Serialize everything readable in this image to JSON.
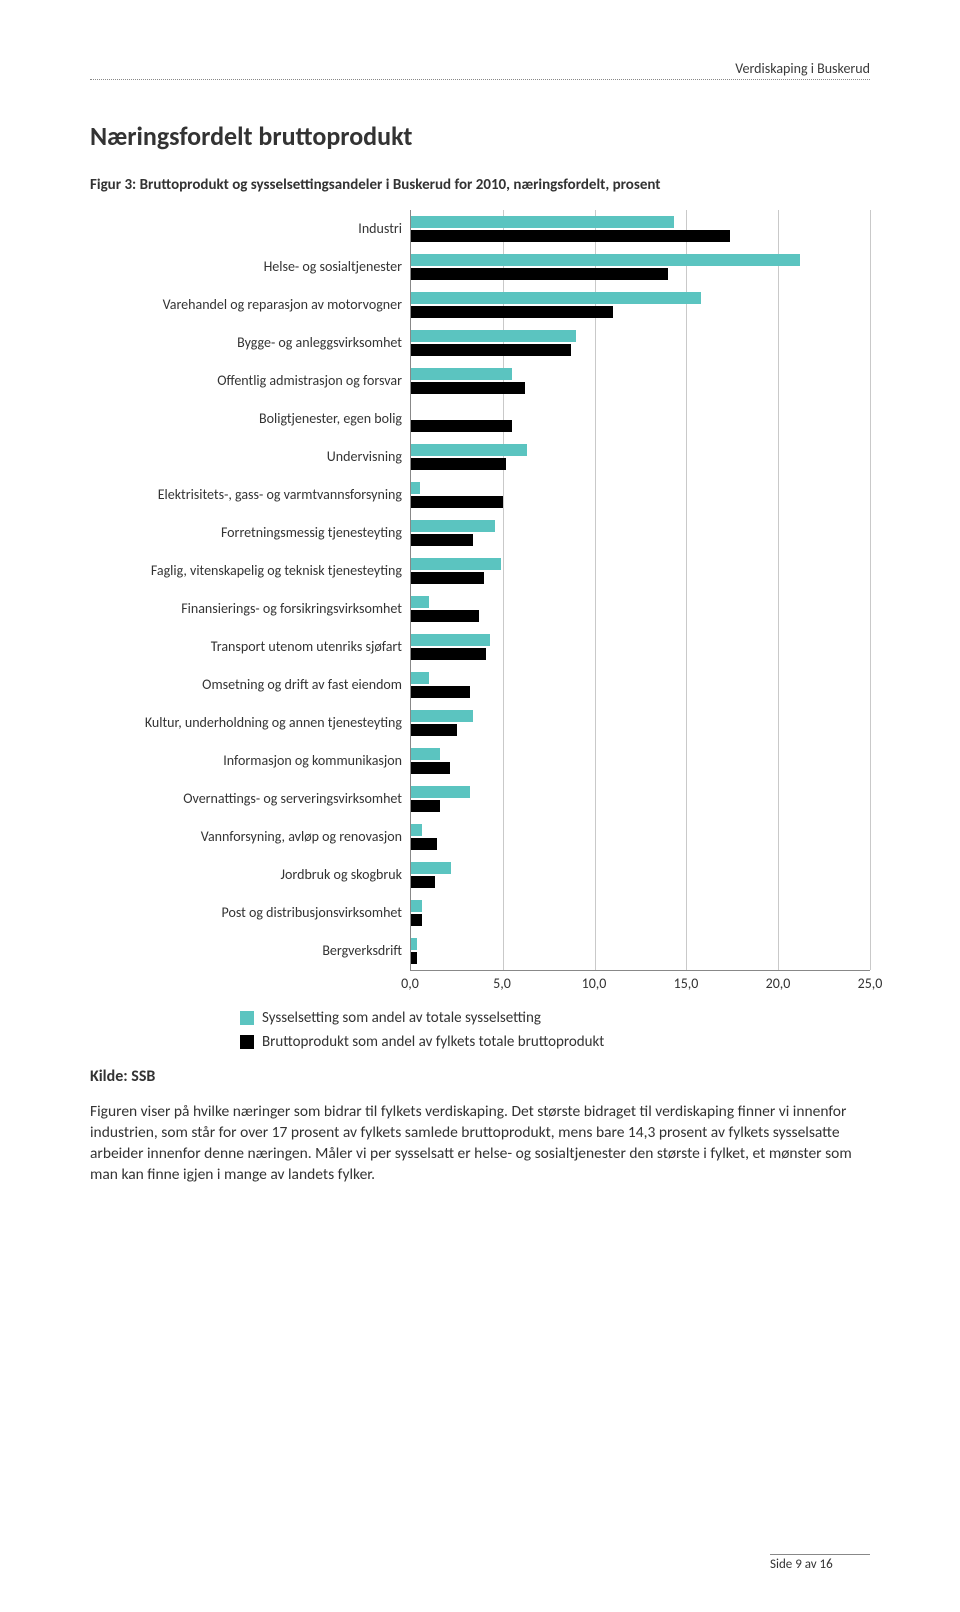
{
  "header": {
    "doc_title": "Verdiskaping i Buskerud"
  },
  "section": {
    "title": "Næringsfordelt bruttoprodukt",
    "figure_caption": "Figur 3: Bruttoprodukt og sysselsettingsandeler i Buskerud for 2010, næringsfordelt, prosent"
  },
  "chart": {
    "type": "grouped-horizontal-bar",
    "xlim": [
      0,
      25
    ],
    "xticks": [
      "0,0",
      "5,0",
      "10,0",
      "15,0",
      "20,0",
      "25,0"
    ],
    "xtick_values": [
      0,
      5,
      10,
      15,
      20,
      25
    ],
    "grid_color": "#c9c9c9",
    "series": [
      {
        "key": "syssel",
        "label": "Sysselsetting som andel av totale sysselsetting",
        "color": "#5bc4c0"
      },
      {
        "key": "brutto",
        "label": "Bruttoprodukt som andel av fylkets totale bruttoprodukt",
        "color": "#000000"
      }
    ],
    "categories": [
      {
        "label": "Industri",
        "syssel": 14.3,
        "brutto": 17.4
      },
      {
        "label": "Helse- og sosialtjenester",
        "syssel": 21.2,
        "brutto": 14.0
      },
      {
        "label": "Varehandel og reparasjon av motorvogner",
        "syssel": 15.8,
        "brutto": 11.0
      },
      {
        "label": "Bygge- og anleggsvirksomhet",
        "syssel": 9.0,
        "brutto": 8.7
      },
      {
        "label": "Offentlig admistrasjon og forsvar",
        "syssel": 5.5,
        "brutto": 6.2
      },
      {
        "label": "Boligtjenester, egen bolig",
        "syssel": 0.0,
        "brutto": 5.5
      },
      {
        "label": "Undervisning",
        "syssel": 6.3,
        "brutto": 5.2
      },
      {
        "label": "Elektrisitets-, gass- og varmtvannsforsyning",
        "syssel": 0.5,
        "brutto": 5.0
      },
      {
        "label": "Forretningsmessig tjenesteyting",
        "syssel": 4.6,
        "brutto": 3.4
      },
      {
        "label": "Faglig, vitenskapelig og teknisk tjenesteyting",
        "syssel": 4.9,
        "brutto": 4.0
      },
      {
        "label": "Finansierings- og forsikringsvirksomhet",
        "syssel": 1.0,
        "brutto": 3.7
      },
      {
        "label": "Transport utenom utenriks sjøfart",
        "syssel": 4.3,
        "brutto": 4.1
      },
      {
        "label": "Omsetning og drift av fast eiendom",
        "syssel": 1.0,
        "brutto": 3.2
      },
      {
        "label": "Kultur, underholdning og annen tjenesteyting",
        "syssel": 3.4,
        "brutto": 2.5
      },
      {
        "label": "Informasjon og kommunikasjon",
        "syssel": 1.6,
        "brutto": 2.1
      },
      {
        "label": "Overnattings- og serveringsvirksomhet",
        "syssel": 3.2,
        "brutto": 1.6
      },
      {
        "label": "Vannforsyning, avløp og renovasjon",
        "syssel": 0.6,
        "brutto": 1.4
      },
      {
        "label": "Jordbruk og skogbruk",
        "syssel": 2.2,
        "brutto": 1.3
      },
      {
        "label": "Post og distribusjonsvirksomhet",
        "syssel": 0.6,
        "brutto": 0.6
      },
      {
        "label": "Bergverksdrift",
        "syssel": 0.3,
        "brutto": 0.3
      }
    ]
  },
  "source": {
    "label": "Kilde: SSB"
  },
  "body": {
    "text": "Figuren viser på hvilke næringer som bidrar til fylkets verdiskaping. Det største bidraget til verdiskaping finner vi innenfor industrien, som står for over 17 prosent av fylkets samlede bruttoprodukt, mens bare 14,3 prosent av fylkets sysselsatte arbeider innenfor denne næringen. Måler vi per sysselsatt er helse- og sosialtjenester den største i fylket, et mønster som man kan finne igjen i mange av landets fylker."
  },
  "footer": {
    "text": "Side 9 av 16"
  }
}
